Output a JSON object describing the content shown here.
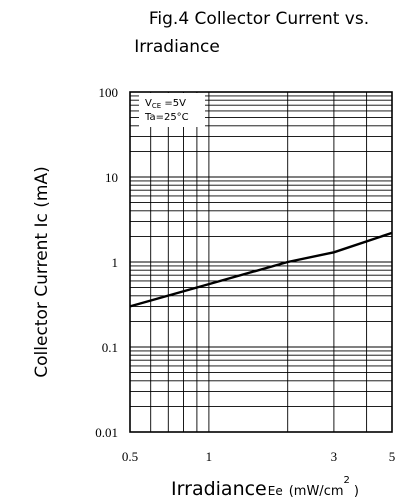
{
  "chart_data": {
    "type": "line",
    "title": [
      "Fig.4  Collector  Current  vs.",
      "Irradiance"
    ],
    "ylabel": "Collector  Current  Ic  (mA)",
    "xlabel": {
      "main": "Irradiance",
      "symbol": "Ee",
      "unit_open": "(mW/cm",
      "unit_sup": "2",
      "unit_close": ")"
    },
    "conditions": [
      {
        "base": "V",
        "sub": "CE",
        "rest": " =5V"
      },
      {
        "base": "Ta=25°C",
        "sub": "",
        "rest": ""
      }
    ],
    "xscale": "log",
    "yscale": "log",
    "xlim": [
      0.5,
      5
    ],
    "ylim": [
      0.01,
      100
    ],
    "xticks": [
      {
        "value": 0.5,
        "label": "0.5"
      },
      {
        "value": 1,
        "label": "1"
      },
      {
        "value": 3,
        "label": "3"
      },
      {
        "value": 5,
        "label": "5"
      }
    ],
    "yticks": [
      {
        "value": 100,
        "label": "100"
      },
      {
        "value": 10,
        "label": "10"
      },
      {
        "value": 1,
        "label": "1"
      },
      {
        "value": 0.1,
        "label": "0.1"
      },
      {
        "value": 0.01,
        "label": "0.01"
      }
    ],
    "grid": true,
    "series": [
      {
        "x": [
          0.5,
          1,
          2,
          3,
          5
        ],
        "y": [
          0.3,
          0.55,
          1.0,
          1.3,
          2.2
        ]
      }
    ]
  }
}
